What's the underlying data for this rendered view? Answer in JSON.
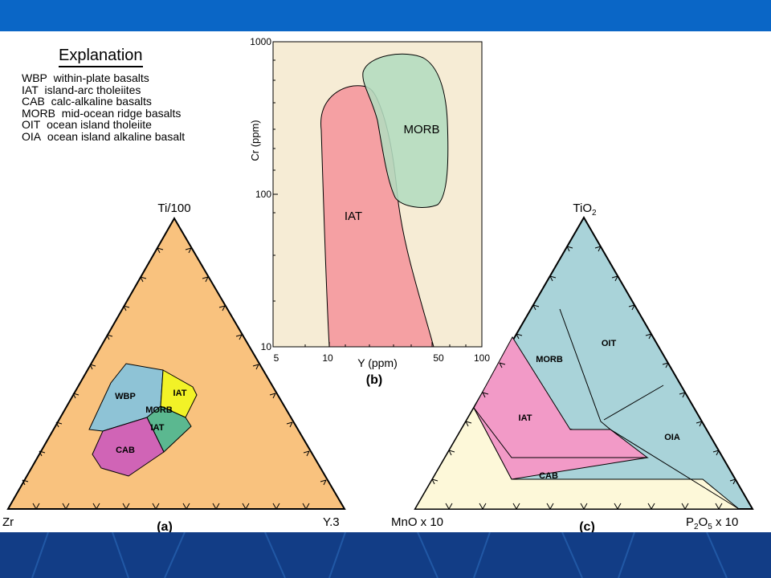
{
  "explanation": {
    "title": "Explanation",
    "items": [
      {
        "abbr": "WBP",
        "desc": "within-plate basalts"
      },
      {
        "abbr": "IAT",
        "desc": "island-arc tholeiites"
      },
      {
        "abbr": "CAB",
        "desc": "calc-alkaline basalts"
      },
      {
        "abbr": "MORB",
        "desc": "mid-ocean ridge basalts"
      },
      {
        "abbr": "OIT",
        "desc": "ocean island tholeiite"
      },
      {
        "abbr": "OIA",
        "desc": "ocean island alkaline basalt"
      }
    ]
  },
  "diagram_a": {
    "apex_top": "Ti/100",
    "apex_left": "Zr",
    "apex_right": "Y.3",
    "caption": "(a)",
    "fields": {
      "wbp": "WBP",
      "iat_upper": "IAT",
      "morb": "MORB",
      "iat_lower": "IAT",
      "cab": "CAB"
    }
  },
  "diagram_b": {
    "caption": "(b)",
    "ylabel": "Cr (ppm)",
    "xlabel": "Y (ppm)",
    "y_ticks": [
      "1000",
      "100",
      "10"
    ],
    "x_ticks": [
      "5",
      "10",
      "50",
      "100"
    ],
    "fields": {
      "iat": "IAT",
      "morb": "MORB"
    }
  },
  "diagram_c": {
    "apex_top": "TiO",
    "apex_top_sub": "2",
    "apex_left": "MnO x 10",
    "apex_right_main": "P",
    "apex_right_sub": "2",
    "apex_right_end": "O",
    "apex_right_sub2": "5",
    "apex_right_tail": " x 10",
    "caption": "(c)",
    "fields": {
      "morb": "MORB",
      "oit": "OIT",
      "iat": "IAT",
      "oia": "OIA",
      "cab": "CAB"
    }
  },
  "colors": {
    "header_band": "#0a66c6",
    "footer_band": "#123d86",
    "triangle_a_fill": "#f9c27e",
    "wbp": "#8ec3d6",
    "iat_yellow": "#f2f227",
    "morb_green": "#5bb890",
    "cab_magenta": "#d064b6",
    "plot_b_bg": "#f6ecd5",
    "iat_pink": "#f5a0a3",
    "morb_b_green": "#b3dcbf",
    "triangle_c_blue": "#a9d3d9",
    "iat_c_pink": "#f29ac7",
    "cab_c_cream": "#fdf8d9"
  }
}
